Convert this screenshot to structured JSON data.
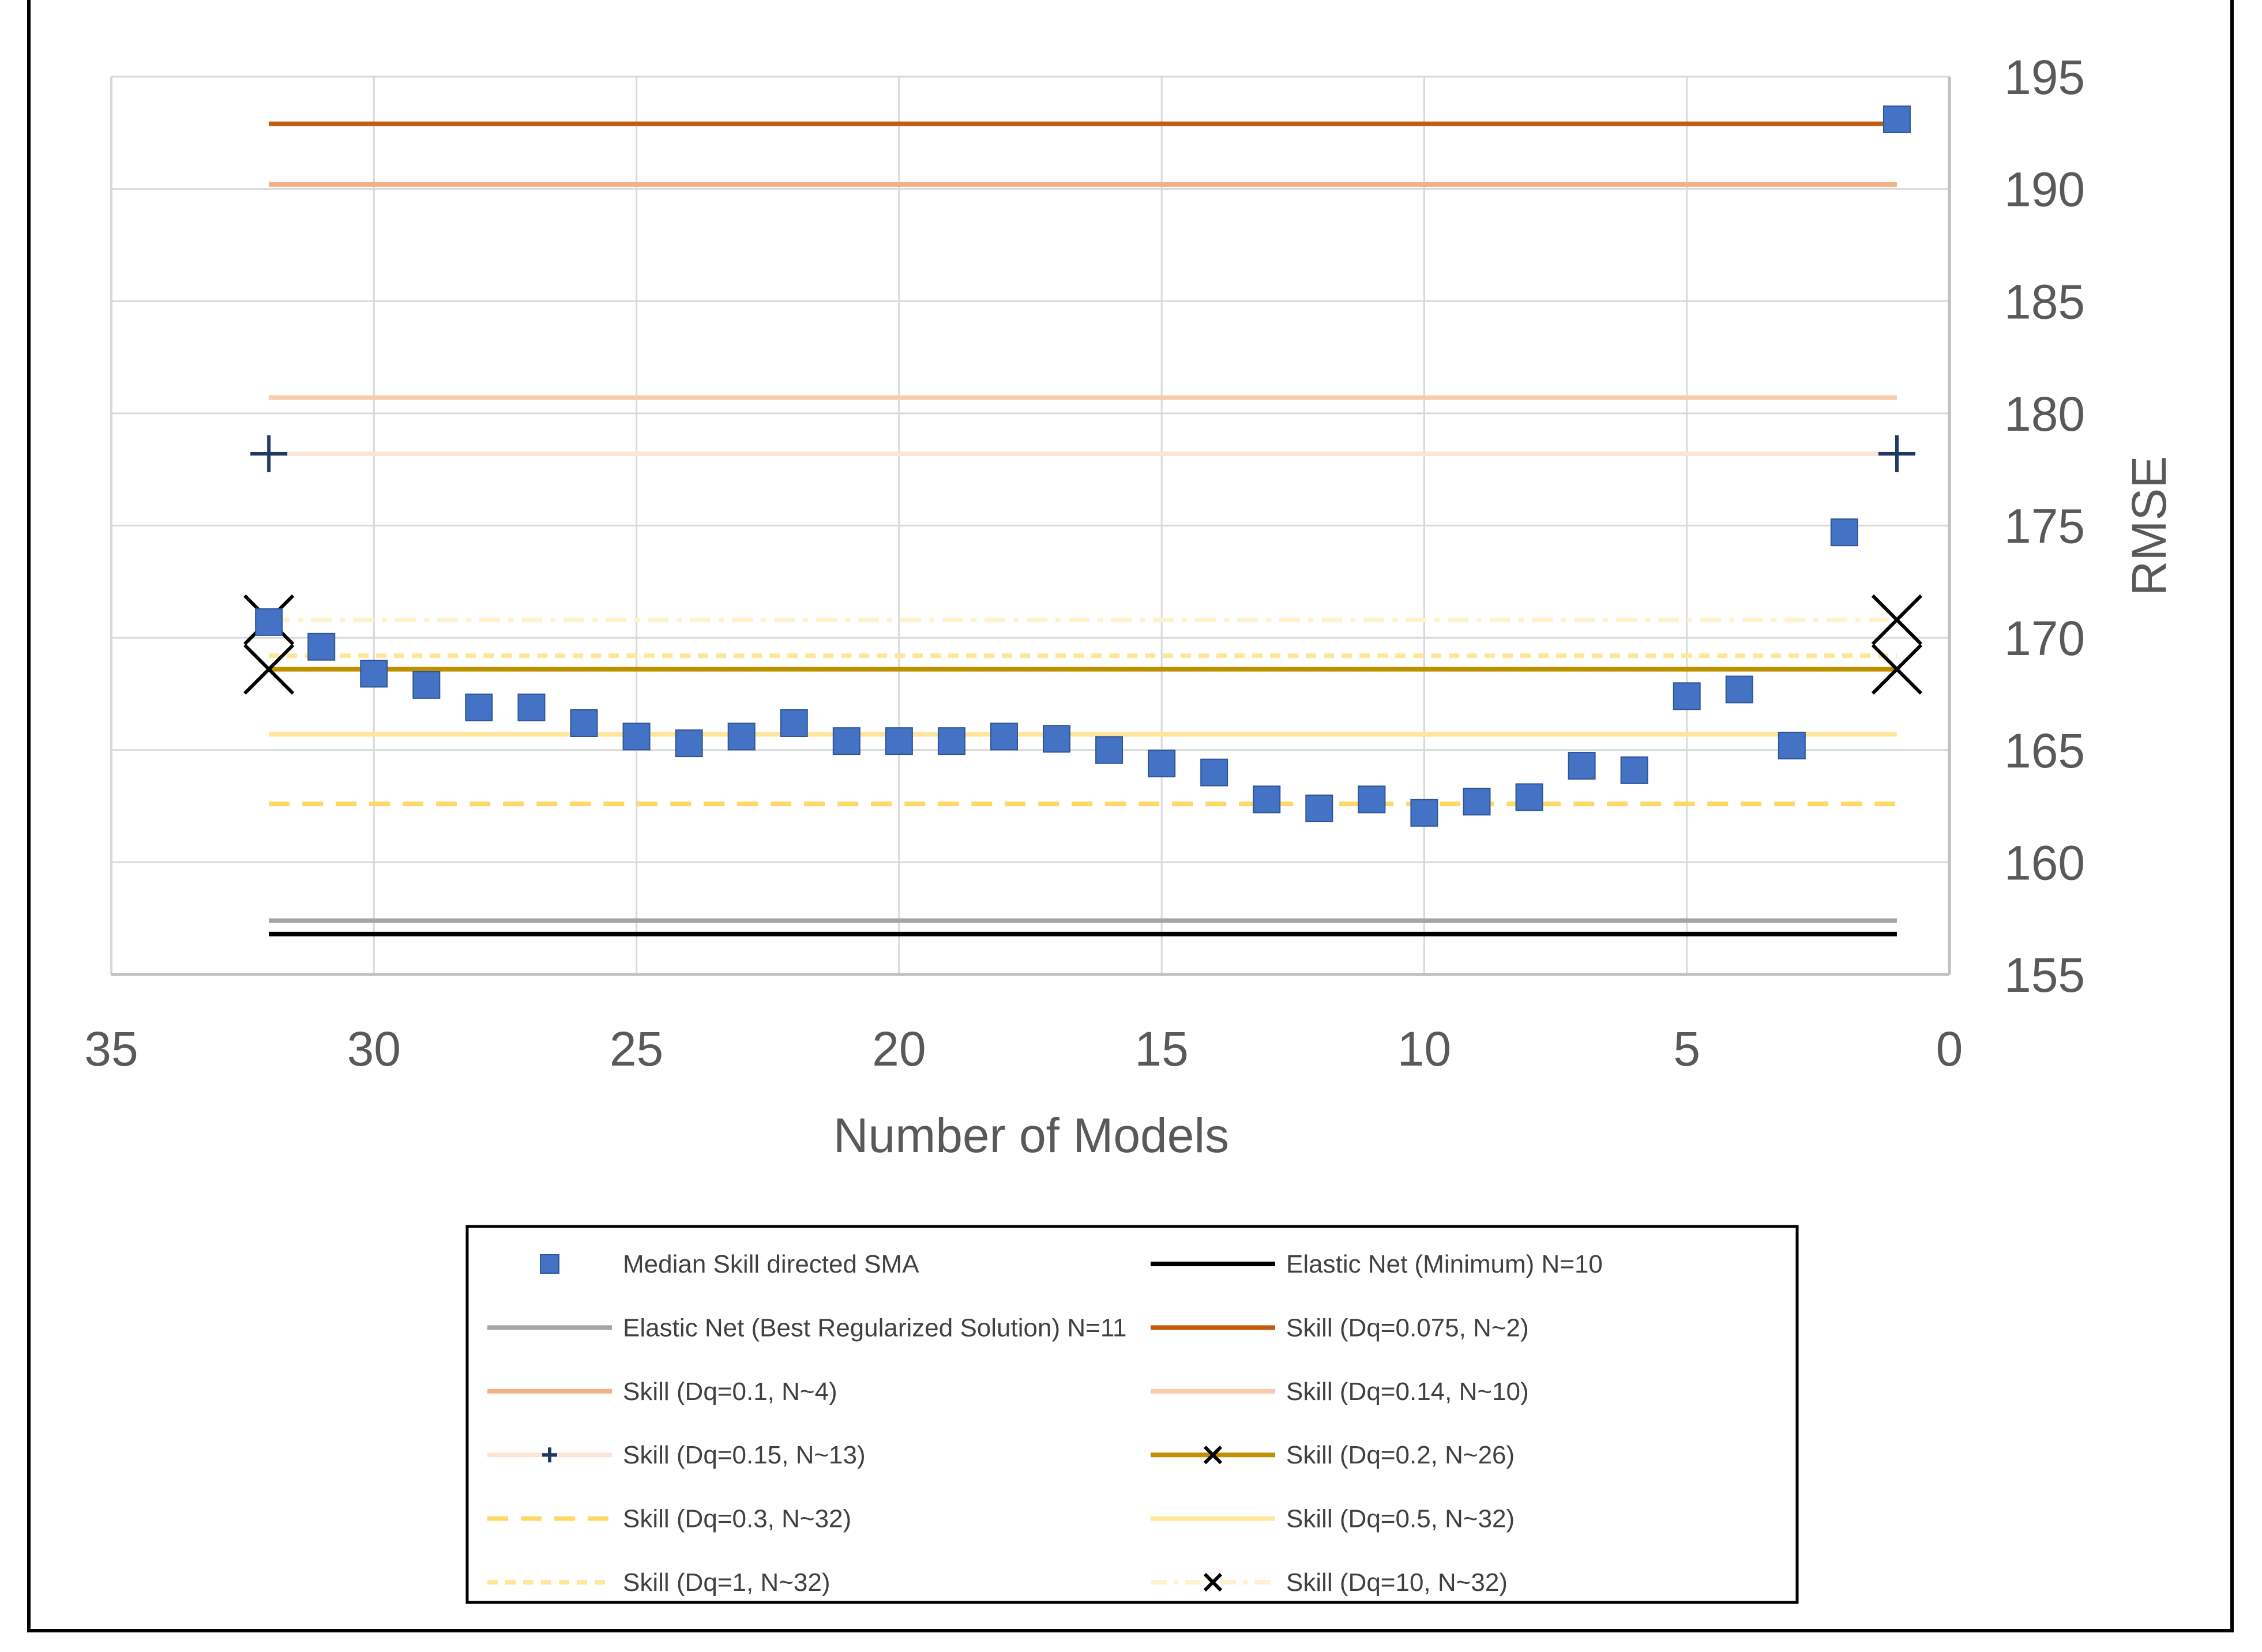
{
  "chart_data": {
    "type": "scatter",
    "xlabel": "Number of Models",
    "ylabel": "RMSE",
    "xlim": [
      35,
      0
    ],
    "ylim": [
      155,
      195
    ],
    "x_ticks": [
      35,
      30,
      25,
      20,
      15,
      10,
      5,
      0
    ],
    "y_ticks": [
      155,
      160,
      165,
      170,
      175,
      180,
      185,
      190,
      195
    ],
    "grid": true,
    "legend_position": "bottom",
    "series": [
      {
        "name": "Median Skill directed SMA",
        "kind": "points",
        "marker": "square",
        "color": "#4472C4",
        "x": [
          32,
          31,
          30,
          29,
          28,
          27,
          26,
          25,
          24,
          23,
          22,
          21,
          20,
          19,
          18,
          17,
          16,
          15,
          14,
          13,
          12,
          11,
          10,
          9,
          8,
          7,
          6,
          5,
          4,
          3,
          2,
          1
        ],
        "values": [
          170.7,
          169.6,
          168.4,
          167.9,
          166.9,
          166.9,
          166.2,
          165.6,
          165.3,
          165.6,
          166.2,
          165.4,
          165.4,
          165.4,
          165.6,
          165.5,
          165.0,
          164.4,
          164.0,
          162.8,
          162.4,
          162.8,
          162.2,
          162.7,
          162.9,
          164.3,
          164.1,
          167.4,
          167.7,
          165.2,
          174.7,
          193.1
        ]
      },
      {
        "name": "Elastic Net (Minimum) N=10",
        "kind": "hline",
        "value": 156.8,
        "x": [
          32,
          1
        ],
        "color": "#000000",
        "dash": "solid",
        "marker": "none"
      },
      {
        "name": "Elastic Net (Best Regularized Solution) N=11",
        "kind": "hline",
        "value": 157.4,
        "x": [
          32,
          1
        ],
        "color": "#A5A5A5",
        "dash": "solid",
        "marker": "none"
      },
      {
        "name": "Skill (Dq=0.075, N~2)",
        "kind": "hline",
        "value": 192.9,
        "x": [
          32,
          1
        ],
        "color": "#C55A11",
        "dash": "solid",
        "marker": "none"
      },
      {
        "name": "Skill (Dq=0.1, N~4)",
        "kind": "hline",
        "value": 190.2,
        "x": [
          32,
          1
        ],
        "color": "#F4B183",
        "dash": "solid",
        "marker": "none"
      },
      {
        "name": "Skill (Dq=0.14, N~10)",
        "kind": "hline",
        "value": 180.7,
        "x": [
          32,
          1
        ],
        "color": "#F8CBAD",
        "dash": "solid",
        "marker": "none"
      },
      {
        "name": "Skill (Dq=0.15, N~13)",
        "kind": "hline",
        "value": 178.2,
        "x": [
          32,
          1
        ],
        "color": "#FBE5D6",
        "dash": "solid",
        "marker": "plus",
        "marker_color": "#203864"
      },
      {
        "name": "Skill (Dq=0.2, N~26)",
        "kind": "hline",
        "value": 168.6,
        "x": [
          32,
          1
        ],
        "color": "#BF9000",
        "dash": "solid",
        "marker": "x",
        "marker_color": "#000000"
      },
      {
        "name": "Skill (Dq=0.3, N~32)",
        "kind": "hline",
        "value": 162.6,
        "x": [
          32,
          1
        ],
        "color": "#FFD966",
        "dash": "dash",
        "marker": "none"
      },
      {
        "name": "Skill (Dq=0.5, N~32)",
        "kind": "hline",
        "value": 165.7,
        "x": [
          32,
          1
        ],
        "color": "#FFE699",
        "dash": "solid",
        "marker": "none"
      },
      {
        "name": "Skill (Dq=1, N~32)",
        "kind": "hline",
        "value": 169.2,
        "x": [
          32,
          1
        ],
        "color": "#FFE699",
        "dash": "shortdash",
        "marker": "none"
      },
      {
        "name": "Skill (Dq=10, N~32)",
        "kind": "hline",
        "value": 170.8,
        "x": [
          32,
          1
        ],
        "color": "#FFF2CC",
        "dash": "dashdot",
        "marker": "x",
        "marker_color": "#000000"
      }
    ],
    "legend_order": [
      "Median Skill directed SMA",
      "Elastic Net (Minimum) N=10",
      "Elastic Net (Best Regularized Solution) N=11",
      "Skill (Dq=0.075, N~2)",
      "Skill (Dq=0.1, N~4)",
      "Skill (Dq=0.14, N~10)",
      "Skill (Dq=0.15, N~13)",
      "Skill (Dq=0.2, N~26)",
      "Skill (Dq=0.3, N~32)",
      "Skill (Dq=0.5, N~32)",
      "Skill (Dq=1, N~32)",
      "Skill (Dq=10, N~32)"
    ]
  }
}
